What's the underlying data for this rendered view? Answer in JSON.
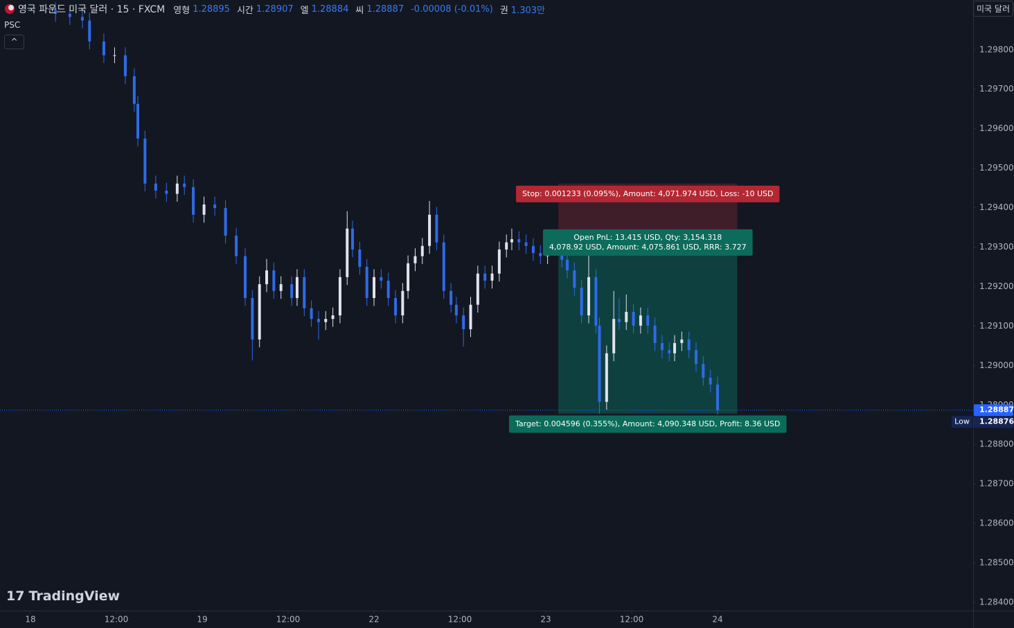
{
  "header": {
    "symbol": "영국 파운드 미국 달러 · 15 · FXCM",
    "ohlc": [
      {
        "label": "영형",
        "value": "1.28895"
      },
      {
        "label": "시간",
        "value": "1.28907"
      },
      {
        "label": "엘",
        "value": "1.28884"
      },
      {
        "label": "씨",
        "value": "1.28887"
      }
    ],
    "change": "-0.00008 (-0.01%)",
    "volume": {
      "label": "권",
      "value": "1.303만"
    }
  },
  "indicator": "PSC",
  "currency_button": "미국 달러",
  "logo": "TradingView",
  "chart_data": {
    "type": "candlestick",
    "up_color": "#e0e3eb",
    "down_color": "#2e6be6",
    "x": [
      3.5,
      5.5,
      7.25,
      8.25,
      10.25,
      11.75,
      13.25,
      14.5,
      15,
      16,
      17.5,
      19,
      20.5,
      21.5,
      22.75,
      24.25,
      25.75,
      27.25,
      28.75,
      30,
      31,
      32,
      33,
      34,
      35,
      36.5,
      37.25,
      38.25,
      39.25,
      40.25,
      41.25,
      42.25,
      43.25,
      44.25,
      45,
      46,
      47,
      48,
      49,
      50,
      51,
      52,
      52.75,
      53.75,
      54.75,
      55.75,
      56.75,
      57.75,
      58.75,
      59.5,
      60.5,
      61.5,
      62.5,
      63.5,
      64.5,
      65.5,
      66.5,
      67.25,
      68.25,
      69.25,
      70.25,
      71.25,
      72.25,
      73.25,
      74.25,
      75,
      76,
      77,
      78,
      79,
      79.5,
      80.5,
      81.5,
      82.25,
      83.25,
      84.25,
      85.25,
      86.25,
      87.25,
      88.25,
      89.25,
      90,
      91,
      92,
      93,
      94,
      95,
      96
    ],
    "open": [
      1.299,
      1.29891,
      1.29883,
      1.29874,
      1.29821,
      1.29786,
      1.29786,
      1.29733,
      1.29663,
      1.29575,
      1.29461,
      1.29443,
      1.29435,
      1.29461,
      1.29452,
      1.29382,
      1.29408,
      1.29399,
      1.29329,
      1.29277,
      1.29171,
      1.29066,
      1.29206,
      1.29241,
      1.29189,
      1.29206,
      1.29171,
      1.29224,
      1.29145,
      1.29118,
      1.2911,
      1.29118,
      1.29127,
      1.29224,
      1.29347,
      1.29294,
      1.2925,
      1.29171,
      1.29224,
      1.29215,
      1.29171,
      1.29127,
      1.29189,
      1.29259,
      1.29277,
      1.29303,
      1.29382,
      1.29312,
      1.29189,
      1.29154,
      1.29127,
      1.29092,
      1.29154,
      1.29233,
      1.29215,
      1.29233,
      1.29294,
      1.29312,
      1.2932,
      1.29312,
      1.29303,
      1.29285,
      1.29277,
      1.29303,
      1.29298,
      1.29268,
      1.29241,
      1.29197,
      1.29127,
      1.29224,
      1.29101,
      1.28908,
      1.29031,
      1.29118,
      1.2911,
      1.29136,
      1.29101,
      1.29127,
      1.29101,
      1.29057,
      1.29039,
      1.29031,
      1.29057,
      1.29066,
      1.29039,
      1.29004,
      1.28969,
      1.28952
    ],
    "high": [
      1.2992,
      1.29911,
      1.29903,
      1.29894,
      1.29841,
      1.29806,
      1.29806,
      1.29753,
      1.29683,
      1.29595,
      1.29481,
      1.29463,
      1.29481,
      1.29481,
      1.29472,
      1.29428,
      1.29428,
      1.29419,
      1.29349,
      1.29297,
      1.29191,
      1.29226,
      1.2927,
      1.29261,
      1.29226,
      1.29226,
      1.29244,
      1.29244,
      1.29165,
      1.29138,
      1.29138,
      1.29147,
      1.29244,
      1.29391,
      1.29367,
      1.29314,
      1.2927,
      1.29244,
      1.29244,
      1.29235,
      1.29191,
      1.29209,
      1.29279,
      1.29297,
      1.29323,
      1.29417,
      1.29402,
      1.29332,
      1.29209,
      1.29174,
      1.29147,
      1.29174,
      1.29253,
      1.29253,
      1.29253,
      1.29314,
      1.29332,
      1.29347,
      1.2934,
      1.29332,
      1.29323,
      1.29305,
      1.29323,
      1.29323,
      1.29318,
      1.29288,
      1.29261,
      1.29217,
      1.29285,
      1.29244,
      1.29121,
      1.29051,
      1.29189,
      1.2917,
      1.2918,
      1.29156,
      1.29147,
      1.29147,
      1.29121,
      1.29077,
      1.29059,
      1.29077,
      1.29086,
      1.29086,
      1.29059,
      1.29024,
      1.28989,
      1.28972
    ],
    "low": [
      1.29871,
      1.29863,
      1.29854,
      1.29801,
      1.29766,
      1.29766,
      1.29713,
      1.29643,
      1.29555,
      1.29441,
      1.29423,
      1.29415,
      1.29415,
      1.29432,
      1.29362,
      1.29362,
      1.29379,
      1.29309,
      1.29257,
      1.29151,
      1.29013,
      1.29046,
      1.29186,
      1.29169,
      1.29169,
      1.29151,
      1.29151,
      1.29125,
      1.29098,
      1.29066,
      1.2909,
      1.29098,
      1.29107,
      1.29204,
      1.29274,
      1.2923,
      1.29151,
      1.29151,
      1.29195,
      1.29151,
      1.29107,
      1.29107,
      1.29169,
      1.29239,
      1.29257,
      1.29283,
      1.29292,
      1.29169,
      1.29134,
      1.29107,
      1.29048,
      1.29072,
      1.29134,
      1.29195,
      1.29195,
      1.29213,
      1.29274,
      1.29292,
      1.29292,
      1.29283,
      1.29265,
      1.29257,
      1.29257,
      1.29278,
      1.29248,
      1.29221,
      1.29177,
      1.29107,
      1.29107,
      1.29081,
      1.28878,
      1.28888,
      1.29011,
      1.2909,
      1.2909,
      1.29081,
      1.29081,
      1.29081,
      1.29037,
      1.29019,
      1.29011,
      1.29011,
      1.29037,
      1.29019,
      1.28984,
      1.28949,
      1.28932,
      1.28876
    ],
    "close": [
      1.29891,
      1.29883,
      1.29874,
      1.29821,
      1.29786,
      1.29786,
      1.29733,
      1.29663,
      1.29575,
      1.29461,
      1.29443,
      1.29435,
      1.29461,
      1.29452,
      1.29382,
      1.29408,
      1.29399,
      1.29329,
      1.29277,
      1.29171,
      1.29066,
      1.29206,
      1.29241,
      1.29189,
      1.29206,
      1.29171,
      1.29224,
      1.29145,
      1.29118,
      1.2911,
      1.29118,
      1.29127,
      1.29224,
      1.29347,
      1.29294,
      1.2925,
      1.29171,
      1.29224,
      1.29215,
      1.29171,
      1.29127,
      1.29189,
      1.29259,
      1.29277,
      1.29303,
      1.29382,
      1.29312,
      1.29189,
      1.29154,
      1.29127,
      1.29092,
      1.29154,
      1.29233,
      1.29215,
      1.29233,
      1.29294,
      1.29312,
      1.2932,
      1.29312,
      1.29303,
      1.29285,
      1.29277,
      1.29303,
      1.29298,
      1.29268,
      1.29241,
      1.29197,
      1.29127,
      1.29224,
      1.29101,
      1.28908,
      1.29031,
      1.29118,
      1.2911,
      1.29136,
      1.29101,
      1.29127,
      1.29101,
      1.29057,
      1.29039,
      1.29031,
      1.29057,
      1.29066,
      1.29039,
      1.29004,
      1.28969,
      1.28952,
      1.28887
    ],
    "xlim": [
      -4.26,
      131.71
    ],
    "xticks": [
      {
        "value": 0,
        "label": "18"
      },
      {
        "value": 12,
        "label": "12:00"
      },
      {
        "value": 24,
        "label": "19"
      },
      {
        "value": 36,
        "label": "12:00"
      },
      {
        "value": 48,
        "label": "22"
      },
      {
        "value": 60,
        "label": "12:00"
      },
      {
        "value": 72,
        "label": "23"
      },
      {
        "value": 84,
        "label": "12:00"
      },
      {
        "value": 96,
        "label": "24"
      }
    ],
    "ylim": [
      1.28379,
      1.29926
    ],
    "yticks": [
      {
        "value": 1.298,
        "label": "1.29800"
      },
      {
        "value": 1.297,
        "label": "1.29700"
      },
      {
        "value": 1.296,
        "label": "1.29600"
      },
      {
        "value": 1.295,
        "label": "1.29500"
      },
      {
        "value": 1.294,
        "label": "1.29400"
      },
      {
        "value": 1.293,
        "label": "1.29300"
      },
      {
        "value": 1.292,
        "label": "1.29200"
      },
      {
        "value": 1.291,
        "label": "1.29100"
      },
      {
        "value": 1.29,
        "label": "1.29000"
      },
      {
        "value": 1.289,
        "label": "1.28900"
      },
      {
        "value": 1.288,
        "label": "1.28800"
      },
      {
        "value": 1.287,
        "label": "1.28700"
      },
      {
        "value": 1.286,
        "label": "1.28600"
      },
      {
        "value": 1.285,
        "label": "1.28500"
      },
      {
        "value": 1.284,
        "label": "1.28400"
      }
    ],
    "last_price": 1.28887,
    "low_marker": {
      "label": "Low",
      "value": 1.28876
    },
    "position": {
      "start": 73.75,
      "end": 98.75,
      "entry": 1.29338,
      "stop": 1.29461,
      "target": 1.28878,
      "stop_label": "Stop:  0.001233 (0.095%), Amount: 4,071.974 USD, Loss: -10 USD",
      "pnl_label": [
        "Open PnL: 13.415 USD, Qty: 3,154.318",
        "4,078.92 USD, Amount: 4,075.861 USD, RRR: 3.727"
      ],
      "target_label": "Target:  0.004596 (0.355%), Amount: 4,090.348 USD, Profit: 8.36 USD"
    }
  }
}
